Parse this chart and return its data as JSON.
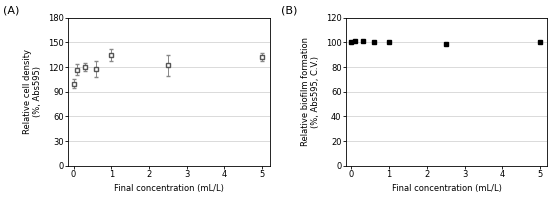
{
  "panel_A": {
    "label": "(A)",
    "x": [
      0.0,
      0.1,
      0.3,
      0.6,
      1.0,
      2.5,
      5.0
    ],
    "y": [
      100,
      117,
      120,
      118,
      135,
      122,
      132
    ],
    "yerr": [
      6,
      7,
      5,
      10,
      7,
      13,
      5
    ],
    "marker": "s",
    "marker_fill": "white",
    "marker_edge": "#555555",
    "line_color": "#888888",
    "ylabel": "Relative cell density\n(%, Abs595)",
    "xlabel": "Final concentration (mL/L)",
    "ylim": [
      0,
      180
    ],
    "yticks": [
      0,
      30,
      60,
      90,
      120,
      150,
      180
    ],
    "xlim": [
      -0.15,
      5.2
    ],
    "xticks": [
      0,
      1,
      2,
      3,
      4,
      5
    ]
  },
  "panel_B": {
    "label": "(B)",
    "x": [
      0.0,
      0.1,
      0.3,
      0.6,
      1.0,
      2.5,
      5.0
    ],
    "y": [
      100,
      101,
      101,
      100,
      100,
      99,
      100
    ],
    "yerr": [
      0.8,
      0.8,
      0.5,
      0.5,
      0.5,
      0.5,
      0.5
    ],
    "marker": "s",
    "marker_fill": "black",
    "marker_edge": "black",
    "line_color": "#888888",
    "ylabel": "Relative biofilm formation\n(%, Abs595, C.V.)",
    "xlabel": "Final concentration (mL/L)",
    "ylim": [
      0,
      120
    ],
    "yticks": [
      0,
      20,
      40,
      60,
      80,
      100,
      120
    ],
    "xlim": [
      -0.15,
      5.2
    ],
    "xticks": [
      0,
      1,
      2,
      3,
      4,
      5
    ]
  }
}
